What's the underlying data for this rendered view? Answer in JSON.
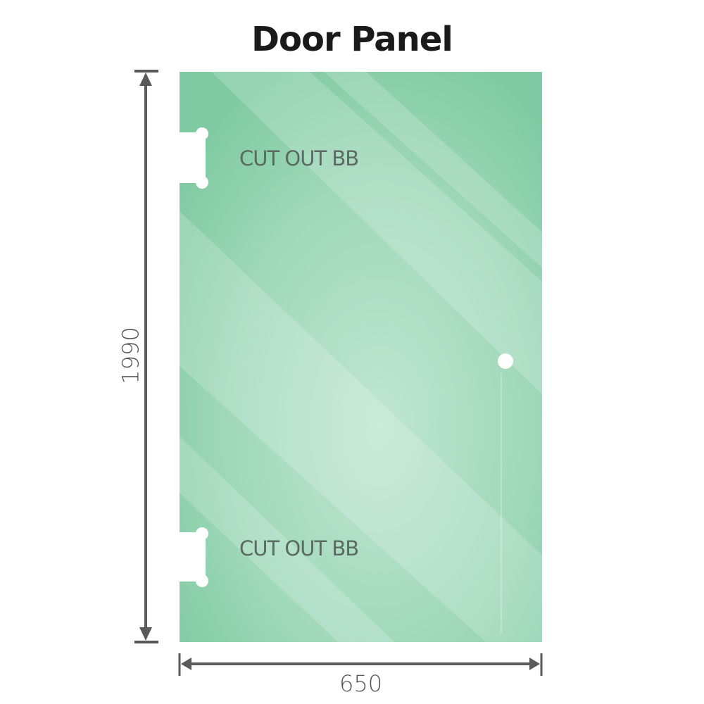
{
  "title": "Door Panel",
  "height_label": "1990",
  "width_label": "650",
  "cutouts": [
    {
      "label": "CUT OUT BB"
    },
    {
      "label": "CUT OUT BB"
    }
  ],
  "colors": {
    "glass_edge": "#7fcaa2",
    "glass_center": "#bfe5d0",
    "dimension_line": "#5a5a5a"
  }
}
